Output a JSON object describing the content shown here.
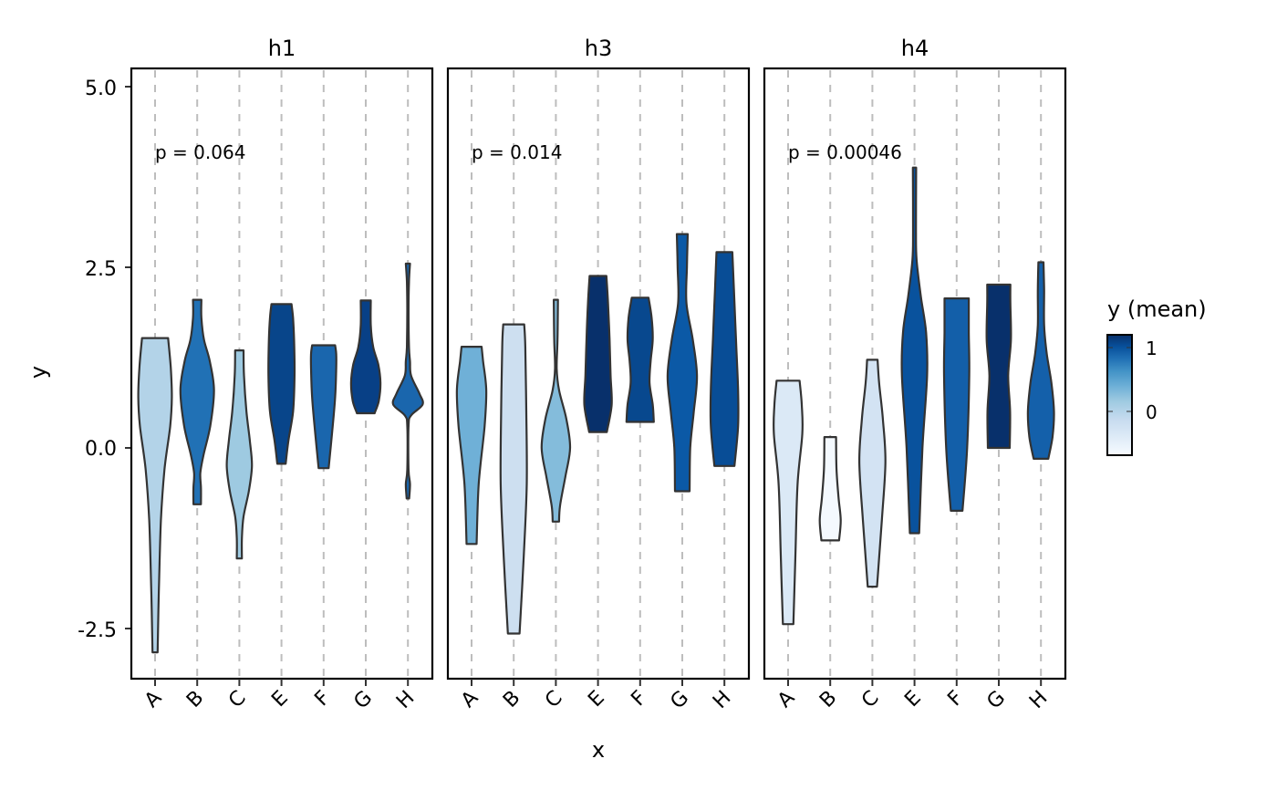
{
  "chart_data": {
    "type": "violin",
    "title": "",
    "xlabel": "x",
    "ylabel": "y",
    "ylim": [
      -3.0,
      5.25
    ],
    "yticks": [
      "5.0",
      "2.5",
      "0.0",
      "-2.5"
    ],
    "ytick_values": [
      5.0,
      2.5,
      0.0,
      -2.5
    ],
    "categories": [
      "A",
      "B",
      "C",
      "E",
      "F",
      "G",
      "H"
    ],
    "grid": "vertical dashed at categories",
    "legend": {
      "title": "y (mean)",
      "position": "right",
      "type": "colorbar",
      "labels": [
        "1",
        "0"
      ],
      "label_values": [
        1,
        0
      ],
      "range": [
        -0.6,
        1.2
      ],
      "colors": [
        "#f7fbff",
        "#deebf7",
        "#c6dbef",
        "#9ecae1",
        "#6baed6",
        "#4292c6",
        "#2171b5",
        "#08519c",
        "#08306b"
      ]
    },
    "facets": [
      {
        "name": "h1",
        "p_label": "p = 0.064",
        "violins": [
          {
            "cat": "A",
            "min": -2.83,
            "max": 1.52,
            "mean": 0.1,
            "color": "#b3d3e8",
            "profile": [
              [
                -2.83,
                0.12
              ],
              [
                -2.0,
                0.18
              ],
              [
                -1.0,
                0.28
              ],
              [
                -0.3,
                0.45
              ],
              [
                0.3,
                0.72
              ],
              [
                0.7,
                0.8
              ],
              [
                1.1,
                0.75
              ],
              [
                1.52,
                0.62
              ]
            ]
          },
          {
            "cat": "B",
            "min": -0.78,
            "max": 2.05,
            "mean": 0.65,
            "color": "#2171b5",
            "profile": [
              [
                -0.78,
                0.18
              ],
              [
                -0.55,
                0.18
              ],
              [
                -0.35,
                0.15
              ],
              [
                -0.1,
                0.3
              ],
              [
                0.3,
                0.62
              ],
              [
                0.8,
                0.8
              ],
              [
                1.2,
                0.6
              ],
              [
                1.5,
                0.32
              ],
              [
                1.8,
                0.2
              ],
              [
                2.05,
                0.2
              ]
            ]
          },
          {
            "cat": "C",
            "min": -1.53,
            "max": 1.35,
            "mean": 0.18,
            "color": "#9ecae1",
            "profile": [
              [
                -1.53,
                0.12
              ],
              [
                -1.25,
                0.12
              ],
              [
                -0.95,
                0.2
              ],
              [
                -0.6,
                0.45
              ],
              [
                -0.25,
                0.6
              ],
              [
                0.1,
                0.5
              ],
              [
                0.5,
                0.34
              ],
              [
                1.0,
                0.22
              ],
              [
                1.35,
                0.2
              ]
            ]
          },
          {
            "cat": "E",
            "min": -0.22,
            "max": 1.99,
            "mean": 1.1,
            "color": "#08458a",
            "profile": [
              [
                -0.22,
                0.2
              ],
              [
                0.1,
                0.33
              ],
              [
                0.5,
                0.55
              ],
              [
                1.0,
                0.62
              ],
              [
                1.5,
                0.6
              ],
              [
                1.8,
                0.55
              ],
              [
                1.99,
                0.48
              ]
            ]
          },
          {
            "cat": "F",
            "min": -0.28,
            "max": 1.42,
            "mean": 0.75,
            "color": "#1a66ad",
            "profile": [
              [
                -0.28,
                0.24
              ],
              [
                0.2,
                0.4
              ],
              [
                0.7,
                0.55
              ],
              [
                1.1,
                0.6
              ],
              [
                1.3,
                0.6
              ],
              [
                1.42,
                0.55
              ]
            ]
          },
          {
            "cat": "G",
            "min": 0.48,
            "max": 2.04,
            "mean": 1.15,
            "color": "#084086",
            "profile": [
              [
                0.48,
                0.42
              ],
              [
                0.65,
                0.62
              ],
              [
                0.9,
                0.7
              ],
              [
                1.15,
                0.6
              ],
              [
                1.4,
                0.35
              ],
              [
                1.7,
                0.24
              ],
              [
                2.04,
                0.24
              ]
            ]
          },
          {
            "cat": "H",
            "min": -0.7,
            "max": 2.55,
            "mean": 0.7,
            "color": "#1a66ad",
            "profile": [
              [
                -0.7,
                0.06
              ],
              [
                -0.5,
                0.1
              ],
              [
                -0.3,
                0.03
              ],
              [
                0.3,
                0.03
              ],
              [
                0.45,
                0.15
              ],
              [
                0.6,
                0.7
              ],
              [
                0.75,
                0.55
              ],
              [
                1.0,
                0.15
              ],
              [
                1.2,
                0.1
              ],
              [
                1.4,
                0.05
              ],
              [
                1.9,
                0.03
              ],
              [
                2.3,
                0.05
              ],
              [
                2.55,
                0.1
              ]
            ]
          }
        ]
      },
      {
        "name": "h3",
        "p_label": "p = 0.014",
        "violins": [
          {
            "cat": "A",
            "min": -1.33,
            "max": 1.4,
            "mean": 0.3,
            "color": "#6fb0d7",
            "profile": [
              [
                -1.33,
                0.24
              ],
              [
                -0.5,
                0.34
              ],
              [
                0.3,
                0.62
              ],
              [
                0.8,
                0.7
              ],
              [
                1.2,
                0.55
              ],
              [
                1.4,
                0.48
              ]
            ]
          },
          {
            "cat": "B",
            "min": -2.57,
            "max": 1.71,
            "mean": -0.3,
            "color": "#cddff0",
            "profile": [
              [
                -2.57,
                0.28
              ],
              [
                -1.5,
                0.48
              ],
              [
                -0.5,
                0.62
              ],
              [
                0.5,
                0.6
              ],
              [
                1.4,
                0.55
              ],
              [
                1.71,
                0.5
              ]
            ]
          },
          {
            "cat": "C",
            "min": -1.02,
            "max": 2.05,
            "mean": 0.25,
            "color": "#84bcdb",
            "profile": [
              [
                -1.02,
                0.15
              ],
              [
                -0.8,
                0.2
              ],
              [
                -0.4,
                0.45
              ],
              [
                0.0,
                0.68
              ],
              [
                0.4,
                0.5
              ],
              [
                0.8,
                0.15
              ],
              [
                1.1,
                0.04
              ],
              [
                1.5,
                0.08
              ],
              [
                2.05,
                0.1
              ]
            ]
          },
          {
            "cat": "E",
            "min": 0.22,
            "max": 2.38,
            "mean": 1.2,
            "color": "#08306b",
            "profile": [
              [
                0.22,
                0.42
              ],
              [
                0.6,
                0.65
              ],
              [
                1.0,
                0.6
              ],
              [
                1.5,
                0.55
              ],
              [
                2.0,
                0.48
              ],
              [
                2.38,
                0.4
              ]
            ]
          },
          {
            "cat": "F",
            "min": 0.36,
            "max": 2.08,
            "mean": 1.15,
            "color": "#08488e",
            "profile": [
              [
                0.36,
                0.65
              ],
              [
                0.6,
                0.6
              ],
              [
                0.9,
                0.45
              ],
              [
                1.2,
                0.5
              ],
              [
                1.5,
                0.6
              ],
              [
                1.8,
                0.55
              ],
              [
                2.08,
                0.4
              ]
            ]
          },
          {
            "cat": "G",
            "min": -0.6,
            "max": 2.96,
            "mean": 1.1,
            "color": "#0b59a6",
            "profile": [
              [
                -0.6,
                0.35
              ],
              [
                0.0,
                0.38
              ],
              [
                0.5,
                0.55
              ],
              [
                1.0,
                0.7
              ],
              [
                1.5,
                0.5
              ],
              [
                2.0,
                0.2
              ],
              [
                2.5,
                0.22
              ],
              [
                2.96,
                0.26
              ]
            ]
          },
          {
            "cat": "H",
            "min": -0.25,
            "max": 2.71,
            "mean": 1.05,
            "color": "#084d96",
            "profile": [
              [
                -0.25,
                0.48
              ],
              [
                0.3,
                0.65
              ],
              [
                0.8,
                0.65
              ],
              [
                1.5,
                0.55
              ],
              [
                2.2,
                0.45
              ],
              [
                2.71,
                0.38
              ]
            ]
          }
        ]
      },
      {
        "name": "h4",
        "p_label": "p = 0.00046",
        "violins": [
          {
            "cat": "A",
            "min": -2.44,
            "max": 0.93,
            "mean": -0.4,
            "color": "#dbe9f6",
            "profile": [
              [
                -2.44,
                0.25
              ],
              [
                -1.5,
                0.35
              ],
              [
                -0.5,
                0.45
              ],
              [
                0.2,
                0.68
              ],
              [
                0.6,
                0.65
              ],
              [
                0.93,
                0.55
              ]
            ]
          },
          {
            "cat": "B",
            "min": -1.28,
            "max": 0.15,
            "mean": -0.6,
            "color": "#f4f9fe",
            "profile": [
              [
                -1.28,
                0.42
              ],
              [
                -1.0,
                0.5
              ],
              [
                -0.7,
                0.4
              ],
              [
                -0.3,
                0.3
              ],
              [
                0.15,
                0.28
              ]
            ]
          },
          {
            "cat": "C",
            "min": -1.92,
            "max": 1.22,
            "mean": -0.3,
            "color": "#d3e3f3",
            "profile": [
              [
                -1.92,
                0.22
              ],
              [
                -1.0,
                0.45
              ],
              [
                -0.2,
                0.62
              ],
              [
                0.4,
                0.5
              ],
              [
                0.9,
                0.32
              ],
              [
                1.22,
                0.25
              ]
            ]
          },
          {
            "cat": "E",
            "min": -1.18,
            "max": 3.88,
            "mean": 1.2,
            "color": "#09529d",
            "profile": [
              [
                -1.18,
                0.22
              ],
              [
                0.0,
                0.38
              ],
              [
                1.0,
                0.6
              ],
              [
                1.6,
                0.55
              ],
              [
                2.1,
                0.3
              ],
              [
                2.6,
                0.1
              ],
              [
                3.0,
                0.07
              ],
              [
                3.88,
                0.08
              ]
            ]
          },
          {
            "cat": "F",
            "min": -0.87,
            "max": 2.07,
            "mean": 1.1,
            "color": "#135fa9",
            "profile": [
              [
                -0.87,
                0.28
              ],
              [
                0.0,
                0.5
              ],
              [
                1.0,
                0.6
              ],
              [
                1.6,
                0.58
              ],
              [
                2.07,
                0.58
              ]
            ]
          },
          {
            "cat": "G",
            "min": 0.0,
            "max": 2.26,
            "mean": 1.3,
            "color": "#08306b",
            "profile": [
              [
                0.0,
                0.52
              ],
              [
                0.5,
                0.54
              ],
              [
                1.0,
                0.45
              ],
              [
                1.5,
                0.58
              ],
              [
                2.0,
                0.55
              ],
              [
                2.26,
                0.55
              ]
            ]
          },
          {
            "cat": "H",
            "min": -0.15,
            "max": 2.57,
            "mean": 0.7,
            "color": "#1460aa",
            "profile": [
              [
                -0.15,
                0.35
              ],
              [
                0.15,
                0.55
              ],
              [
                0.5,
                0.62
              ],
              [
                0.9,
                0.5
              ],
              [
                1.3,
                0.28
              ],
              [
                1.7,
                0.15
              ],
              [
                2.2,
                0.15
              ],
              [
                2.57,
                0.12
              ]
            ]
          }
        ]
      }
    ]
  }
}
